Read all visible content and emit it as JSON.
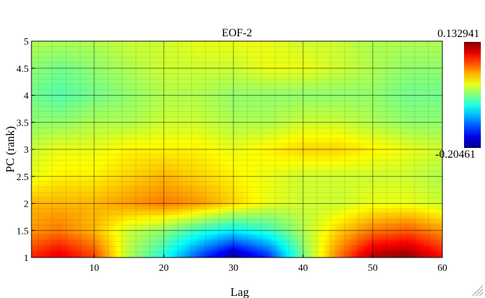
{
  "chart_data": {
    "type": "heatmap",
    "title": "EOF-2",
    "xlabel": "Lag",
    "ylabel": "PC (rank)",
    "xlim": [
      1,
      60
    ],
    "ylim": [
      1,
      5
    ],
    "x_ticks": [
      10,
      20,
      30,
      40,
      50,
      60
    ],
    "y_ticks": [
      1,
      1.5,
      2,
      2.5,
      3,
      3.5,
      4,
      4.5,
      5
    ],
    "x_tick_labels": [
      "10",
      "20",
      "30",
      "40",
      "50",
      "60"
    ],
    "y_tick_labels": [
      "1",
      "1.5",
      "2",
      "2.5",
      "3",
      "3.5",
      "4",
      "4.5",
      "5"
    ],
    "grid": true,
    "colorbar": {
      "min": -0.20461,
      "max": 0.132941,
      "min_label": "-0.20461",
      "max_label": "0.132941",
      "colormap": "jet",
      "placement": "right"
    },
    "lags": [
      1,
      5,
      10,
      15,
      20,
      25,
      30,
      35,
      40,
      45,
      50,
      55,
      60
    ],
    "pcs": [
      1,
      1.5,
      2,
      2.5,
      3,
      3.5,
      4,
      4.5,
      5
    ],
    "values": [
      [
        0.08,
        0.1,
        0.07,
        -0.02,
        -0.07,
        -0.14,
        -0.2,
        -0.15,
        -0.04,
        0.05,
        0.12,
        0.13,
        0.09
      ],
      [
        0.04,
        0.05,
        0.03,
        -0.01,
        -0.03,
        -0.06,
        -0.08,
        -0.06,
        -0.02,
        0.02,
        0.05,
        0.06,
        0.04
      ],
      [
        0.03,
        0.03,
        0.03,
        0.04,
        0.05,
        0.04,
        0.02,
        0.0,
        -0.01,
        -0.01,
        0.0,
        0.0,
        -0.01
      ],
      [
        0.0,
        0.01,
        0.01,
        0.02,
        0.03,
        0.02,
        0.01,
        0.0,
        -0.01,
        -0.01,
        -0.01,
        -0.01,
        -0.02
      ],
      [
        -0.01,
        0.0,
        0.0,
        0.01,
        0.01,
        0.01,
        0.0,
        0.01,
        0.02,
        0.02,
        0.01,
        0.0,
        -0.01
      ],
      [
        -0.03,
        -0.03,
        -0.02,
        -0.02,
        -0.01,
        -0.01,
        -0.02,
        -0.02,
        -0.01,
        -0.01,
        -0.02,
        -0.03,
        -0.03
      ],
      [
        -0.04,
        -0.05,
        -0.04,
        -0.03,
        -0.02,
        -0.02,
        -0.03,
        -0.03,
        -0.03,
        -0.03,
        -0.03,
        -0.04,
        -0.04
      ],
      [
        -0.03,
        -0.04,
        -0.03,
        -0.02,
        -0.01,
        -0.01,
        -0.01,
        0.0,
        0.0,
        -0.01,
        -0.02,
        -0.03,
        -0.03
      ],
      [
        -0.02,
        -0.02,
        -0.02,
        -0.01,
        -0.01,
        0.0,
        0.0,
        0.0,
        -0.01,
        -0.01,
        -0.02,
        -0.02,
        -0.02
      ]
    ]
  }
}
